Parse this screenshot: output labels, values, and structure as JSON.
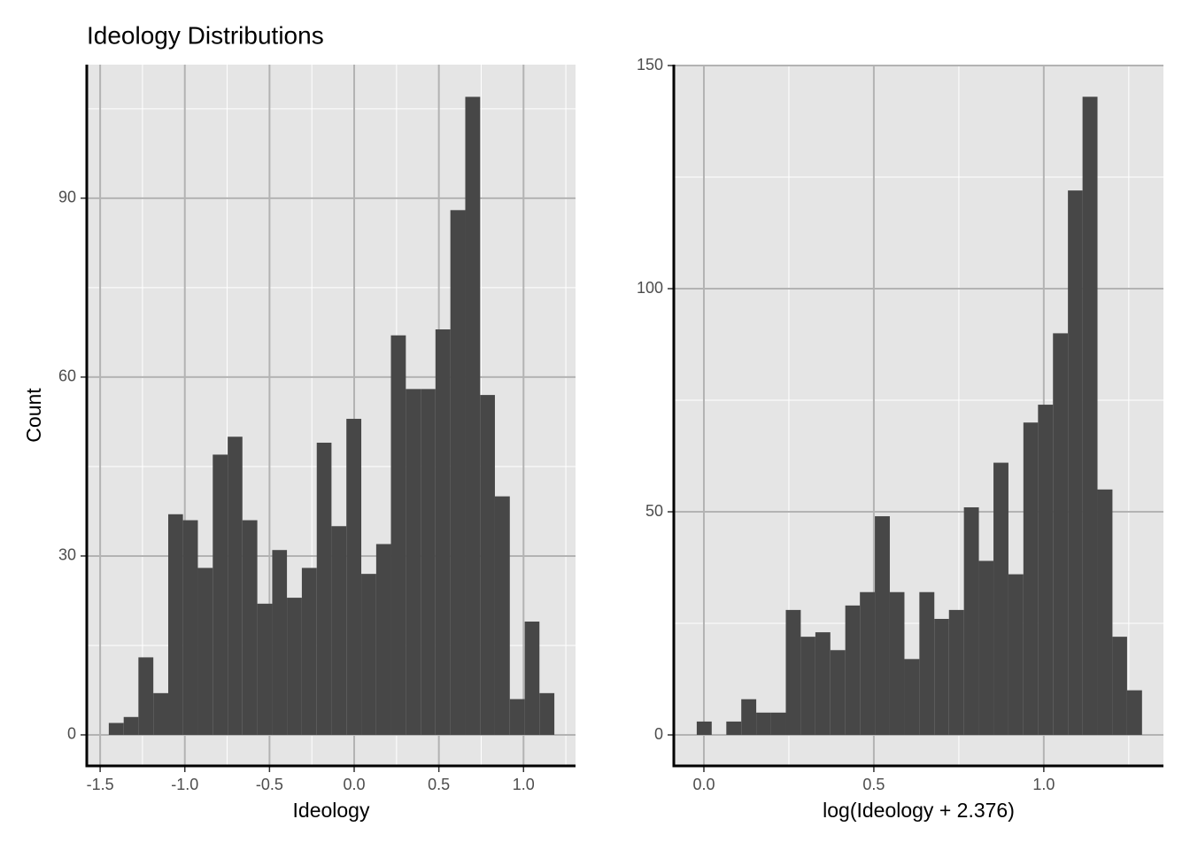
{
  "chart_data": [
    {
      "type": "histogram",
      "title": "Ideology Distributions",
      "xlabel": "Ideology",
      "ylabel": "Count",
      "color": "#474747",
      "grid": true,
      "bins": [
        -1.449,
        -1.361,
        -1.274,
        -1.186,
        -1.098,
        -1.011,
        -0.923,
        -0.835,
        -0.747,
        -0.66,
        -0.572,
        -0.484,
        -0.397,
        -0.309,
        -0.221,
        -0.134,
        -0.046,
        0.042,
        0.13,
        0.217,
        0.305,
        0.393,
        0.48,
        0.568,
        0.656,
        0.744,
        0.831,
        0.919,
        1.007,
        1.094,
        1.182
      ],
      "values": [
        2,
        3,
        13,
        7,
        37,
        36,
        28,
        47,
        50,
        36,
        22,
        31,
        23,
        28,
        49,
        35,
        53,
        27,
        32,
        67,
        58,
        58,
        68,
        88,
        107,
        57,
        40,
        6,
        19,
        7
      ],
      "xlim": [
        -1.579,
        1.307
      ],
      "ylim": [
        -5.2,
        112.4
      ],
      "xticks": [
        -1.5,
        {
          "value": -1,
          "label": "-1.0"
        },
        -0.5,
        {
          "value": 0,
          "label": "0.0"
        },
        0.5,
        {
          "value": 1,
          "label": "1.0"
        }
      ],
      "yticks": [
        0,
        30,
        60,
        90
      ]
    },
    {
      "type": "histogram",
      "xlabel": "log(Ideology + 2.376)",
      "color": "#474747",
      "grid": true,
      "bins": [
        -0.021,
        0.023,
        0.066,
        0.11,
        0.154,
        0.197,
        0.241,
        0.285,
        0.328,
        0.372,
        0.416,
        0.459,
        0.503,
        0.547,
        0.59,
        0.634,
        0.678,
        0.721,
        0.765,
        0.809,
        0.852,
        0.896,
        0.94,
        0.983,
        1.027,
        1.071,
        1.114,
        1.158,
        1.202,
        1.245,
        1.289
      ],
      "values": [
        3,
        0,
        3,
        8,
        5,
        5,
        28,
        22,
        23,
        19,
        29,
        32,
        49,
        32,
        17,
        32,
        26,
        28,
        51,
        39,
        61,
        36,
        70,
        74,
        90,
        122,
        143,
        55,
        22,
        10
      ],
      "xlim": [
        -0.0885,
        1.352
      ],
      "ylim": [
        -6.94,
        150.2
      ],
      "xticks": [
        {
          "value": 0,
          "label": "0.0"
        },
        0.5,
        {
          "value": 1,
          "label": "1.0"
        }
      ],
      "yticks": [
        0,
        50,
        100,
        150
      ]
    }
  ]
}
